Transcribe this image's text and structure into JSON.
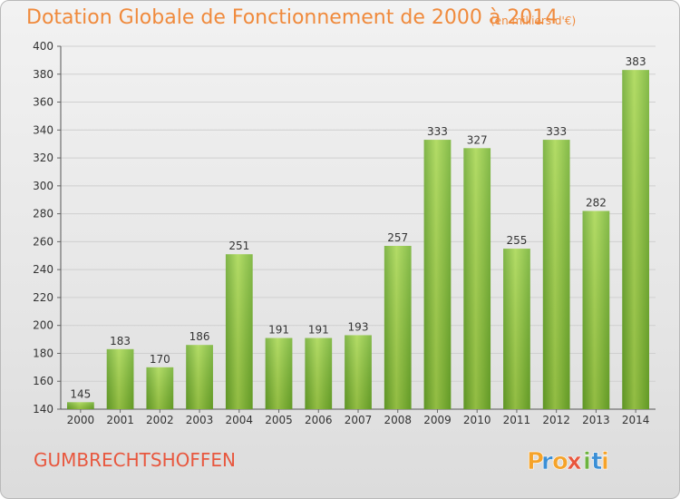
{
  "chart_data": {
    "type": "bar",
    "title": "Dotation Globale de Fonctionnement de 2000 à 2014",
    "subtitle": "(en milliers d'€)",
    "categories": [
      "2000",
      "2001",
      "2002",
      "2003",
      "2004",
      "2005",
      "2006",
      "2007",
      "2008",
      "2009",
      "2010",
      "2011",
      "2012",
      "2013",
      "2014"
    ],
    "values": [
      145,
      183,
      170,
      186,
      251,
      191,
      191,
      193,
      257,
      333,
      327,
      255,
      333,
      282,
      383
    ],
    "data_labels": [
      "145",
      "183",
      "170",
      "186",
      "251",
      "191",
      "191",
      "193",
      "257",
      "333",
      "327",
      "255",
      "333",
      "282",
      "383"
    ],
    "ylim": [
      140,
      400
    ],
    "yticks": [
      140,
      160,
      180,
      200,
      220,
      240,
      260,
      280,
      300,
      320,
      340,
      360,
      380,
      400
    ],
    "grid": "horizontal",
    "xlabel": "",
    "ylabel": "",
    "bar_color": "#7dbf2e",
    "bar_highlight": "#a9d94f"
  },
  "footer": {
    "commune": "GUMBRECHTSHOFFEN"
  },
  "logo": {
    "text": "Proxiti",
    "letters": [
      "P",
      "r",
      "o",
      "x",
      "i",
      "t",
      "i"
    ],
    "colors": [
      "#f5a32a",
      "#3b8fd6",
      "#f5a32a",
      "#e8573e",
      "#6db33f",
      "#3b8fd6",
      "#f5a32a"
    ]
  },
  "colors": {
    "title": "#f08a3c",
    "commune": "#e8573e"
  }
}
